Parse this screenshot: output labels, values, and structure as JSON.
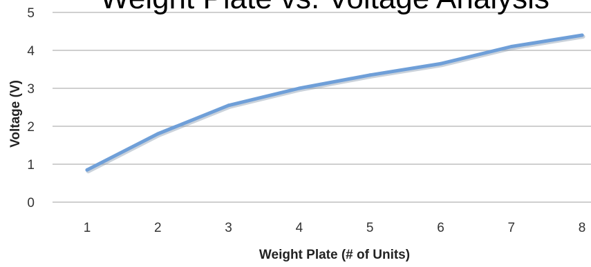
{
  "chart_data": {
    "type": "line",
    "title": "Weight Plate vs. Voltage Analysis",
    "xlabel": "Weight Plate (# of Units)",
    "ylabel": "Voltage (V)",
    "categories": [
      "1",
      "2",
      "3",
      "4",
      "5",
      "6",
      "7",
      "8"
    ],
    "series": [
      {
        "values": [
          0.85,
          1.8,
          2.55,
          3.0,
          3.35,
          3.65,
          4.1,
          4.4
        ]
      }
    ],
    "ylim": [
      0,
      5
    ],
    "yticks": [
      "0",
      "1",
      "2",
      "3",
      "4",
      "5"
    ],
    "grid": true,
    "legend": "none",
    "colors": {
      "line": "#6f9fd8",
      "line_shadow": "#8a9bb0",
      "grid": "#bfbfbf"
    }
  }
}
